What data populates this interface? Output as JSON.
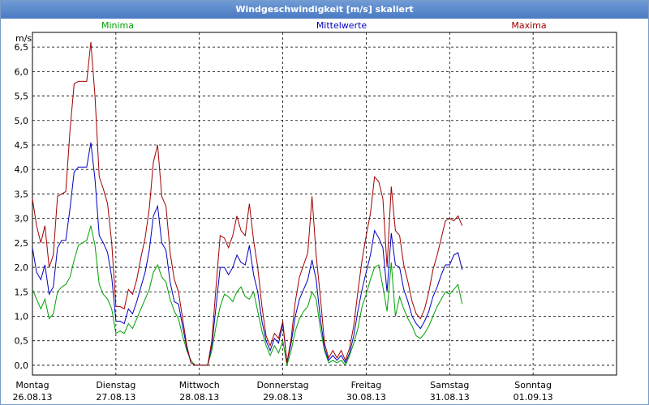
{
  "window": {
    "title": "Windgeschwindigkeit [m/s] skaliert"
  },
  "chart_data": {
    "type": "line",
    "title": "Windgeschwindigkeit [m/s] skaliert",
    "ylabel": "m/s",
    "xlabel": "",
    "ylim": [
      -0.2,
      6.8
    ],
    "xlim": [
      0,
      7
    ],
    "grid": true,
    "legend_placement": "top",
    "y_ticks": [
      "0,0",
      "0,5",
      "1,0",
      "1,5",
      "2,0",
      "2,5",
      "3,0",
      "3,5",
      "4,0",
      "4,5",
      "5,0",
      "5,5",
      "6,0",
      "6,5"
    ],
    "day_labels": [
      {
        "day": "Montag",
        "date": "26.08.13"
      },
      {
        "day": "Dienstag",
        "date": "27.08.13"
      },
      {
        "day": "Mittwoch",
        "date": "28.08.13"
      },
      {
        "day": "Donnerstag",
        "date": "29.08.13"
      },
      {
        "day": "Freitag",
        "date": "30.08.13"
      },
      {
        "day": "Samstag",
        "date": "31.08.13"
      },
      {
        "day": "Sonntag",
        "date": "01.09.13"
      }
    ],
    "series": [
      {
        "name": "Minima",
        "color": "#00a000",
        "points": [
          [
            0,
            1.55
          ],
          [
            0.05,
            1.35
          ],
          [
            0.1,
            1.15
          ],
          [
            0.15,
            1.35
          ],
          [
            0.2,
            0.95
          ],
          [
            0.25,
            1.05
          ],
          [
            0.3,
            1.5
          ],
          [
            0.35,
            1.6
          ],
          [
            0.4,
            1.65
          ],
          [
            0.45,
            1.8
          ],
          [
            0.5,
            2.15
          ],
          [
            0.55,
            2.45
          ],
          [
            0.6,
            2.5
          ],
          [
            0.65,
            2.55
          ],
          [
            0.7,
            2.85
          ],
          [
            0.75,
            2.45
          ],
          [
            0.8,
            1.65
          ],
          [
            0.85,
            1.45
          ],
          [
            0.9,
            1.35
          ],
          [
            0.95,
            1.15
          ],
          [
            1.0,
            0.65
          ],
          [
            1.05,
            0.7
          ],
          [
            1.1,
            0.65
          ],
          [
            1.15,
            0.85
          ],
          [
            1.2,
            0.75
          ],
          [
            1.25,
            0.95
          ],
          [
            1.3,
            1.15
          ],
          [
            1.35,
            1.35
          ],
          [
            1.4,
            1.55
          ],
          [
            1.45,
            1.9
          ],
          [
            1.5,
            2.05
          ],
          [
            1.55,
            1.8
          ],
          [
            1.6,
            1.7
          ],
          [
            1.65,
            1.35
          ],
          [
            1.7,
            1.1
          ],
          [
            1.75,
            0.95
          ],
          [
            1.8,
            0.6
          ],
          [
            1.85,
            0.3
          ],
          [
            1.9,
            0.1
          ],
          [
            1.95,
            0.0
          ],
          [
            2.0,
            0.0
          ],
          [
            2.05,
            0.0
          ],
          [
            2.1,
            0.0
          ],
          [
            2.15,
            0.3
          ],
          [
            2.2,
            0.8
          ],
          [
            2.25,
            1.2
          ],
          [
            2.3,
            1.45
          ],
          [
            2.35,
            1.4
          ],
          [
            2.4,
            1.3
          ],
          [
            2.45,
            1.5
          ],
          [
            2.5,
            1.6
          ],
          [
            2.55,
            1.4
          ],
          [
            2.6,
            1.35
          ],
          [
            2.65,
            1.5
          ],
          [
            2.7,
            1.1
          ],
          [
            2.75,
            0.7
          ],
          [
            2.8,
            0.4
          ],
          [
            2.85,
            0.2
          ],
          [
            2.9,
            0.4
          ],
          [
            2.95,
            0.25
          ],
          [
            3.0,
            0.5
          ],
          [
            3.05,
            0.0
          ],
          [
            3.1,
            0.3
          ],
          [
            3.15,
            0.7
          ],
          [
            3.2,
            0.95
          ],
          [
            3.25,
            1.1
          ],
          [
            3.3,
            1.2
          ],
          [
            3.35,
            1.5
          ],
          [
            3.4,
            1.35
          ],
          [
            3.45,
            0.75
          ],
          [
            3.5,
            0.3
          ],
          [
            3.55,
            0.05
          ],
          [
            3.6,
            0.1
          ],
          [
            3.65,
            0.05
          ],
          [
            3.7,
            0.1
          ],
          [
            3.75,
            0.0
          ],
          [
            3.8,
            0.2
          ],
          [
            3.85,
            0.45
          ],
          [
            3.9,
            0.75
          ],
          [
            3.95,
            1.2
          ],
          [
            4.0,
            1.45
          ],
          [
            4.05,
            1.75
          ],
          [
            4.1,
            2.0
          ],
          [
            4.15,
            2.05
          ],
          [
            4.2,
            1.6
          ],
          [
            4.25,
            1.1
          ],
          [
            4.3,
            2.1
          ],
          [
            4.35,
            1.0
          ],
          [
            4.4,
            1.4
          ],
          [
            4.45,
            1.15
          ],
          [
            4.5,
            0.95
          ],
          [
            4.55,
            0.8
          ],
          [
            4.6,
            0.6
          ],
          [
            4.65,
            0.55
          ],
          [
            4.7,
            0.65
          ],
          [
            4.75,
            0.8
          ],
          [
            4.8,
            1.0
          ],
          [
            4.85,
            1.2
          ],
          [
            4.9,
            1.35
          ],
          [
            4.95,
            1.5
          ],
          [
            5.0,
            1.45
          ],
          [
            5.05,
            1.55
          ],
          [
            5.1,
            1.65
          ],
          [
            5.15,
            1.25
          ]
        ]
      },
      {
        "name": "Mittelwerte",
        "color": "#0000c0",
        "points": [
          [
            0,
            2.4
          ],
          [
            0.05,
            1.9
          ],
          [
            0.1,
            1.75
          ],
          [
            0.15,
            2.05
          ],
          [
            0.2,
            1.45
          ],
          [
            0.25,
            1.6
          ],
          [
            0.3,
            2.4
          ],
          [
            0.35,
            2.55
          ],
          [
            0.4,
            2.55
          ],
          [
            0.45,
            3.2
          ],
          [
            0.5,
            3.95
          ],
          [
            0.55,
            4.05
          ],
          [
            0.6,
            4.05
          ],
          [
            0.65,
            4.05
          ],
          [
            0.7,
            4.55
          ],
          [
            0.75,
            3.8
          ],
          [
            0.8,
            2.65
          ],
          [
            0.85,
            2.5
          ],
          [
            0.9,
            2.3
          ],
          [
            0.95,
            1.8
          ],
          [
            1.0,
            0.9
          ],
          [
            1.05,
            0.9
          ],
          [
            1.1,
            0.85
          ],
          [
            1.15,
            1.15
          ],
          [
            1.2,
            1.05
          ],
          [
            1.25,
            1.3
          ],
          [
            1.3,
            1.6
          ],
          [
            1.35,
            1.9
          ],
          [
            1.4,
            2.35
          ],
          [
            1.45,
            3.05
          ],
          [
            1.5,
            3.25
          ],
          [
            1.55,
            2.5
          ],
          [
            1.6,
            2.35
          ],
          [
            1.65,
            1.7
          ],
          [
            1.7,
            1.3
          ],
          [
            1.75,
            1.25
          ],
          [
            1.8,
            0.8
          ],
          [
            1.85,
            0.35
          ],
          [
            1.9,
            0.05
          ],
          [
            1.95,
            0.0
          ],
          [
            2.0,
            0.0
          ],
          [
            2.05,
            0.0
          ],
          [
            2.1,
            0.0
          ],
          [
            2.15,
            0.4
          ],
          [
            2.2,
            1.2
          ],
          [
            2.25,
            2.0
          ],
          [
            2.3,
            2.0
          ],
          [
            2.35,
            1.85
          ],
          [
            2.4,
            2.0
          ],
          [
            2.45,
            2.25
          ],
          [
            2.5,
            2.1
          ],
          [
            2.55,
            2.05
          ],
          [
            2.6,
            2.45
          ],
          [
            2.65,
            1.85
          ],
          [
            2.7,
            1.5
          ],
          [
            2.75,
            0.9
          ],
          [
            2.8,
            0.5
          ],
          [
            2.85,
            0.3
          ],
          [
            2.9,
            0.55
          ],
          [
            2.95,
            0.45
          ],
          [
            3.0,
            0.85
          ],
          [
            3.05,
            0.05
          ],
          [
            3.1,
            0.45
          ],
          [
            3.15,
            1.0
          ],
          [
            3.2,
            1.35
          ],
          [
            3.25,
            1.55
          ],
          [
            3.3,
            1.75
          ],
          [
            3.35,
            2.15
          ],
          [
            3.4,
            1.75
          ],
          [
            3.45,
            0.95
          ],
          [
            3.5,
            0.35
          ],
          [
            3.55,
            0.1
          ],
          [
            3.6,
            0.2
          ],
          [
            3.65,
            0.1
          ],
          [
            3.7,
            0.2
          ],
          [
            3.75,
            0.05
          ],
          [
            3.8,
            0.25
          ],
          [
            3.85,
            0.6
          ],
          [
            3.9,
            1.1
          ],
          [
            3.95,
            1.55
          ],
          [
            4.0,
            1.9
          ],
          [
            4.05,
            2.25
          ],
          [
            4.1,
            2.75
          ],
          [
            4.15,
            2.6
          ],
          [
            4.2,
            2.4
          ],
          [
            4.25,
            1.5
          ],
          [
            4.3,
            2.7
          ],
          [
            4.35,
            2.05
          ],
          [
            4.4,
            2.0
          ],
          [
            4.45,
            1.55
          ],
          [
            4.5,
            1.3
          ],
          [
            4.55,
            1.0
          ],
          [
            4.6,
            0.85
          ],
          [
            4.65,
            0.75
          ],
          [
            4.7,
            0.9
          ],
          [
            4.75,
            1.1
          ],
          [
            4.8,
            1.4
          ],
          [
            4.85,
            1.6
          ],
          [
            4.9,
            1.85
          ],
          [
            4.95,
            2.05
          ],
          [
            5.0,
            2.05
          ],
          [
            5.05,
            2.25
          ],
          [
            5.1,
            2.3
          ],
          [
            5.15,
            1.95
          ]
        ]
      },
      {
        "name": "Maxima",
        "color": "#a00000",
        "points": [
          [
            0,
            3.4
          ],
          [
            0.05,
            2.85
          ],
          [
            0.1,
            2.5
          ],
          [
            0.15,
            2.85
          ],
          [
            0.2,
            2.0
          ],
          [
            0.25,
            2.25
          ],
          [
            0.3,
            3.45
          ],
          [
            0.35,
            3.5
          ],
          [
            0.4,
            3.55
          ],
          [
            0.45,
            4.8
          ],
          [
            0.5,
            5.75
          ],
          [
            0.55,
            5.8
          ],
          [
            0.6,
            5.8
          ],
          [
            0.65,
            5.8
          ],
          [
            0.7,
            6.6
          ],
          [
            0.75,
            5.5
          ],
          [
            0.8,
            3.85
          ],
          [
            0.85,
            3.6
          ],
          [
            0.9,
            3.3
          ],
          [
            0.95,
            2.5
          ],
          [
            1.0,
            1.2
          ],
          [
            1.05,
            1.2
          ],
          [
            1.1,
            1.15
          ],
          [
            1.15,
            1.55
          ],
          [
            1.2,
            1.45
          ],
          [
            1.25,
            1.75
          ],
          [
            1.3,
            2.2
          ],
          [
            1.35,
            2.6
          ],
          [
            1.4,
            3.2
          ],
          [
            1.45,
            4.15
          ],
          [
            1.5,
            4.5
          ],
          [
            1.55,
            3.45
          ],
          [
            1.6,
            3.25
          ],
          [
            1.65,
            2.3
          ],
          [
            1.7,
            1.75
          ],
          [
            1.75,
            1.5
          ],
          [
            1.8,
            0.95
          ],
          [
            1.85,
            0.4
          ],
          [
            1.9,
            0.05
          ],
          [
            1.95,
            0.0
          ],
          [
            2.0,
            0.0
          ],
          [
            2.05,
            0.0
          ],
          [
            2.1,
            0.0
          ],
          [
            2.15,
            0.5
          ],
          [
            2.2,
            1.6
          ],
          [
            2.25,
            2.65
          ],
          [
            2.3,
            2.6
          ],
          [
            2.35,
            2.4
          ],
          [
            2.4,
            2.65
          ],
          [
            2.45,
            3.05
          ],
          [
            2.5,
            2.75
          ],
          [
            2.55,
            2.65
          ],
          [
            2.6,
            3.3
          ],
          [
            2.65,
            2.55
          ],
          [
            2.7,
            2.0
          ],
          [
            2.75,
            1.2
          ],
          [
            2.8,
            0.6
          ],
          [
            2.85,
            0.4
          ],
          [
            2.9,
            0.65
          ],
          [
            2.95,
            0.55
          ],
          [
            3.0,
            0.9
          ],
          [
            3.05,
            0.05
          ],
          [
            3.1,
            0.55
          ],
          [
            3.15,
            1.3
          ],
          [
            3.2,
            1.8
          ],
          [
            3.25,
            2.05
          ],
          [
            3.3,
            2.3
          ],
          [
            3.35,
            3.45
          ],
          [
            3.4,
            2.25
          ],
          [
            3.45,
            1.4
          ],
          [
            3.5,
            0.45
          ],
          [
            3.55,
            0.15
          ],
          [
            3.6,
            0.3
          ],
          [
            3.65,
            0.15
          ],
          [
            3.7,
            0.3
          ],
          [
            3.75,
            0.1
          ],
          [
            3.8,
            0.35
          ],
          [
            3.85,
            0.8
          ],
          [
            3.9,
            1.5
          ],
          [
            3.95,
            2.15
          ],
          [
            4.0,
            2.65
          ],
          [
            4.05,
            3.1
          ],
          [
            4.1,
            3.85
          ],
          [
            4.15,
            3.75
          ],
          [
            4.2,
            3.4
          ],
          [
            4.25,
            2.0
          ],
          [
            4.3,
            3.65
          ],
          [
            4.35,
            2.75
          ],
          [
            4.4,
            2.65
          ],
          [
            4.45,
            2.05
          ],
          [
            4.5,
            1.7
          ],
          [
            4.55,
            1.3
          ],
          [
            4.6,
            1.05
          ],
          [
            4.65,
            0.95
          ],
          [
            4.7,
            1.15
          ],
          [
            4.75,
            1.5
          ],
          [
            4.8,
            1.95
          ],
          [
            4.85,
            2.25
          ],
          [
            4.9,
            2.6
          ],
          [
            4.95,
            2.95
          ],
          [
            5.0,
            3.0
          ],
          [
            5.05,
            2.95
          ],
          [
            5.1,
            3.05
          ],
          [
            5.15,
            2.85
          ]
        ]
      }
    ]
  }
}
